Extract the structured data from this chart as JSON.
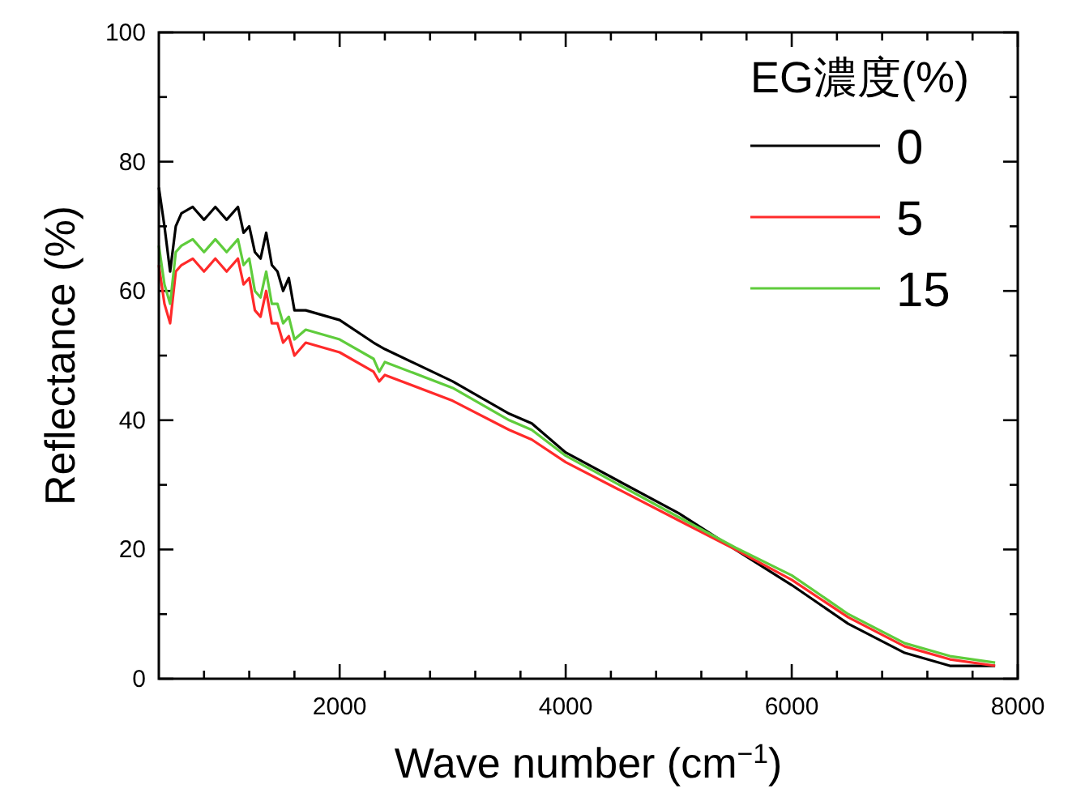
{
  "chart_data": {
    "type": "line",
    "xlabel": "Wave number (cm$^{−1}$)",
    "ylabel": "Reflectance (%)",
    "legend_title": "EG濃度(%)",
    "legend": "top right",
    "x": [
      400,
      450,
      500,
      550,
      600,
      700,
      800,
      900,
      1000,
      1100,
      1150,
      1200,
      1250,
      1300,
      1350,
      1400,
      1450,
      1500,
      1550,
      1600,
      1700,
      2000,
      2300,
      2350,
      2400,
      3000,
      3500,
      3700,
      4000,
      5000,
      5500,
      6000,
      6500,
      7000,
      7400,
      7800
    ],
    "xlim": [
      400,
      8000
    ],
    "ylim": [
      0,
      100
    ],
    "xticks": [
      {
        "value": 800,
        "label": null
      },
      {
        "value": 1200,
        "label": null
      },
      {
        "value": 1600,
        "label": null
      },
      2000,
      {
        "value": 2400,
        "label": null
      },
      {
        "value": 2800,
        "label": null
      },
      {
        "value": 3200,
        "label": null
      },
      {
        "value": 3600,
        "label": null
      },
      4000,
      {
        "value": 4400,
        "label": null
      },
      {
        "value": 4800,
        "label": null
      },
      {
        "value": 5200,
        "label": null
      },
      {
        "value": 5600,
        "label": null
      },
      6000,
      {
        "value": 6400,
        "label": null
      },
      {
        "value": 6800,
        "label": null
      },
      {
        "value": 7200,
        "label": null
      },
      {
        "value": 7600,
        "label": null
      },
      8000
    ],
    "yticks": [
      0,
      {
        "value": 10,
        "label": null
      },
      20,
      {
        "value": 30,
        "label": null
      },
      40,
      {
        "value": 50,
        "label": null
      },
      60,
      {
        "value": 70,
        "label": null
      },
      80,
      {
        "value": 90,
        "label": null
      },
      100
    ],
    "series": [
      {
        "name": "0",
        "color": "#000000",
        "values": [
          76,
          70,
          63,
          70,
          72,
          73,
          71,
          73,
          71,
          73,
          69,
          70,
          66,
          65,
          69,
          64,
          63,
          60,
          62,
          57,
          57,
          55.5,
          52,
          51.5,
          51,
          46,
          41,
          39.5,
          35,
          25.6,
          20,
          14.5,
          8.5,
          4,
          2,
          2
        ]
      },
      {
        "name": "5",
        "color": "#ff2a2a",
        "values": [
          64,
          58,
          55,
          63,
          64,
          65,
          63,
          65,
          63,
          65,
          61,
          62,
          57,
          56,
          60,
          55,
          55,
          52,
          53,
          50,
          52,
          50.5,
          47.5,
          46,
          47,
          43,
          38.5,
          37,
          33.5,
          24.5,
          20,
          15.3,
          9.5,
          5,
          3,
          2
        ]
      },
      {
        "name": "15",
        "color": "#5fcc3c",
        "values": [
          67,
          61,
          58,
          66,
          67,
          68,
          66,
          68,
          66,
          68,
          64,
          65,
          60,
          59,
          63,
          58,
          58,
          55,
          56,
          52.5,
          54,
          52.5,
          49.5,
          47.5,
          49,
          45,
          40,
          38.5,
          34.5,
          25,
          20.3,
          16,
          10,
          5.5,
          3.5,
          2.5
        ]
      }
    ]
  }
}
